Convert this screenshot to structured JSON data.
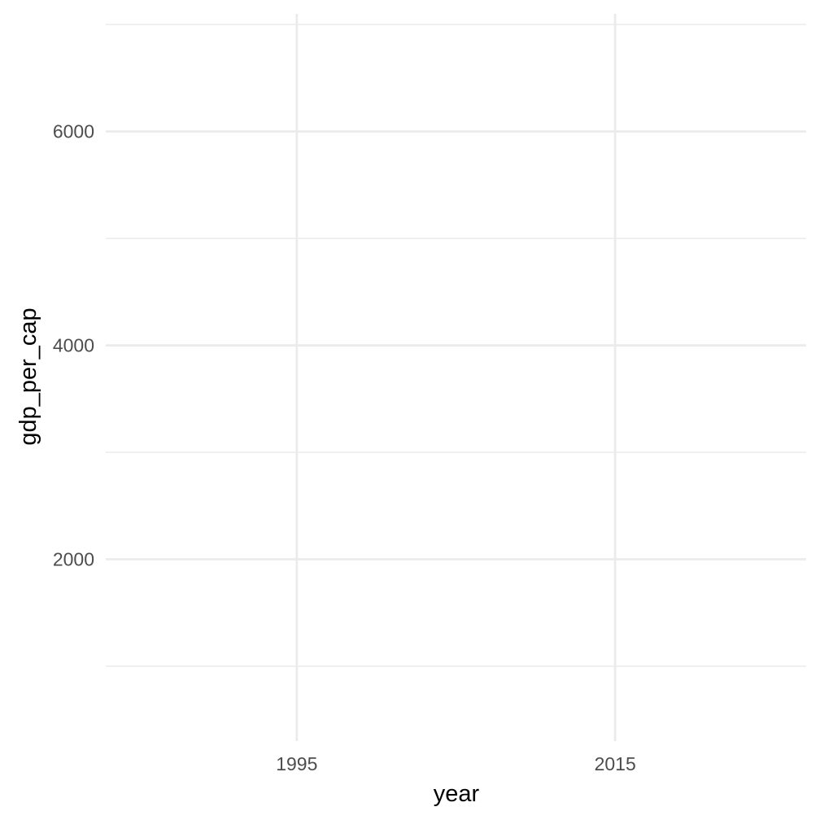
{
  "chart_data": {
    "type": "line",
    "title": "",
    "xlabel": "year",
    "ylabel": "gdp_per_cap",
    "x_ticks": [
      1995,
      2015
    ],
    "y_ticks": [
      2000,
      4000,
      6000
    ],
    "xlim": [
      1983,
      2027
    ],
    "ylim": [
      300,
      7100
    ],
    "x_minor": [],
    "y_minor": [
      1000,
      3000,
      5000,
      7000
    ],
    "series": [],
    "grid": true,
    "legend": "none",
    "colors": {
      "grid": "#ebebeb",
      "tick_text": "#4d4d4d",
      "axis_title": "#000000",
      "background": "#ffffff"
    }
  }
}
